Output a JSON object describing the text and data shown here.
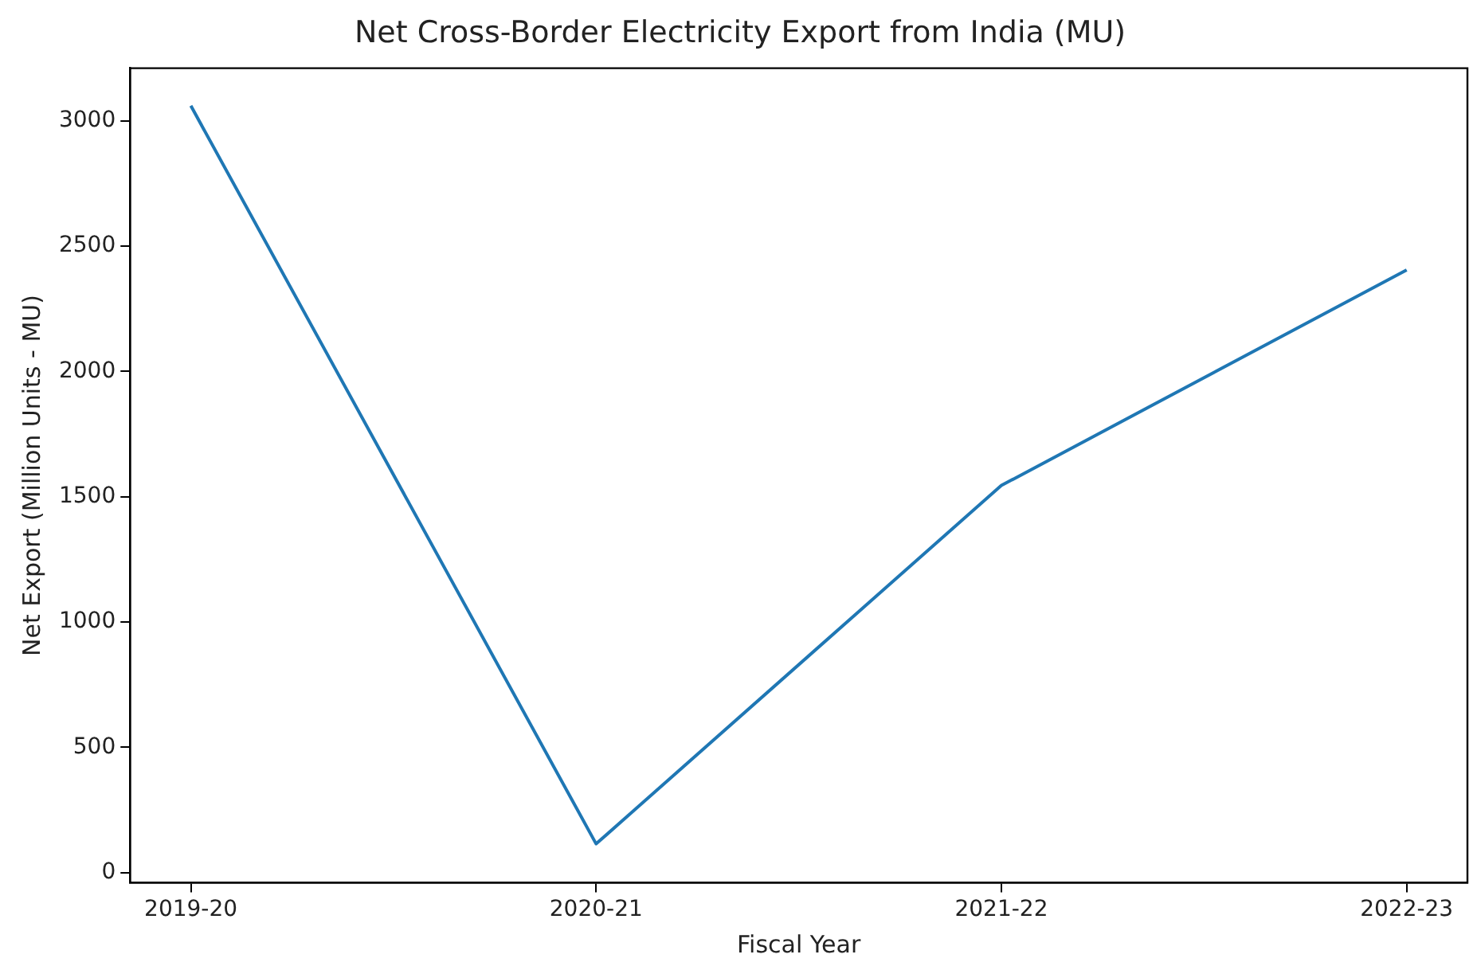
{
  "chart_data": {
    "type": "line",
    "title": "Net Cross-Border Electricity Export from India (MU)",
    "xlabel": "Fiscal Year",
    "ylabel": "Net Export (Million Units - MU)",
    "categories": [
      "2019-20",
      "2020-21",
      "2021-22",
      "2022-23"
    ],
    "series": [
      {
        "color": "#1f77b4",
        "values": [
          3060,
          115,
          1545,
          2405
        ]
      }
    ],
    "ylim": [
      -40,
      3210
    ],
    "yticks": [
      0,
      500,
      1000,
      1500,
      2000,
      2500,
      3000
    ],
    "grid": false,
    "legend": false,
    "marker": "none",
    "line_style": "solid"
  }
}
